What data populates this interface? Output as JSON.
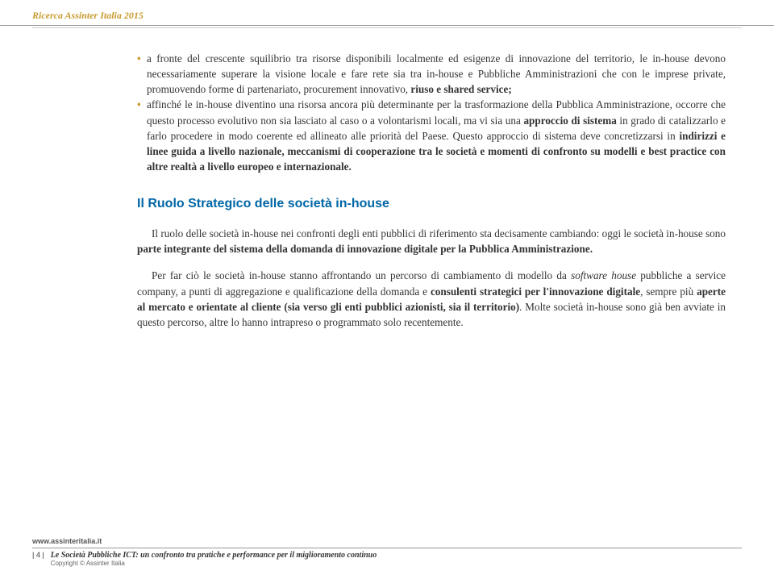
{
  "header": {
    "title": "Ricerca Assinter Italia 2015"
  },
  "bullets": [
    {
      "marker": "•",
      "text_pre": "a fronte del crescente squilibrio tra risorse disponibili localmente ed esigenze di innovazione del territorio, le in-house devono necessariamente superare la visione locale e fare rete sia tra in-house e Pubbliche Amministrazioni che con le imprese private, promuovendo forme di partenariato, procurement innovativo, ",
      "bold": "riuso e shared service;",
      "text_post": ""
    },
    {
      "marker": "•",
      "text_pre": "affinché le in-house diventino una risorsa ancora più determinante per la trasformazione della Pubblica Amministrazione, occorre che questo processo evolutivo non sia lasciato al caso o a volontarismi locali, ma vi sia una ",
      "bold": "approccio di sistema",
      "text_mid": " in grado di catalizzarlo e farlo procedere in modo coerente ed allineato alle priorità del Paese. Questo approccio di sistema deve concretizzarsi in ",
      "bold2": "indirizzi e linee guida a livello nazionale, meccanismi di cooperazione tra le società e momenti di confronto su modelli e best practice con altre realtà a livello europeo e internazionale.",
      "text_post": ""
    }
  ],
  "section": {
    "heading": "Il Ruolo Strategico delle società in-house"
  },
  "paragraphs": {
    "p1_pre": "Il ruolo delle società in-house nei confronti degli enti pubblici di riferimento sta decisamente cambiando: oggi le società in-house sono ",
    "p1_bold": "parte integrante del sistema della domanda di innovazione digitale per la Pubblica Amministrazione.",
    "p2_pre": "Per far ciò le società in-house stanno affrontando un percorso di cambiamento di modello da ",
    "p2_italic": "software house",
    "p2_mid": " pubbliche a service company, a punti di aggregazione e qualificazione della domanda e ",
    "p2_bold1": "consulenti strategici per l'innovazione digitale",
    "p2_mid2": ", sempre più ",
    "p2_bold2": "aperte al mercato e orientate al cliente (sia verso gli enti pubblici azionisti, sia il territorio)",
    "p2_post": ". Molte società in-house sono già ben avviate in questo percorso, altre lo hanno intrapreso o programmato solo recentemente."
  },
  "footer": {
    "url": "www.assinteritalia.it",
    "page": "| 4 |",
    "title": "Le Società Pubbliche ICT: un confronto tra pratiche e performance per il miglioramento continuo",
    "copyright": "Copyright © Assinter Italia"
  }
}
